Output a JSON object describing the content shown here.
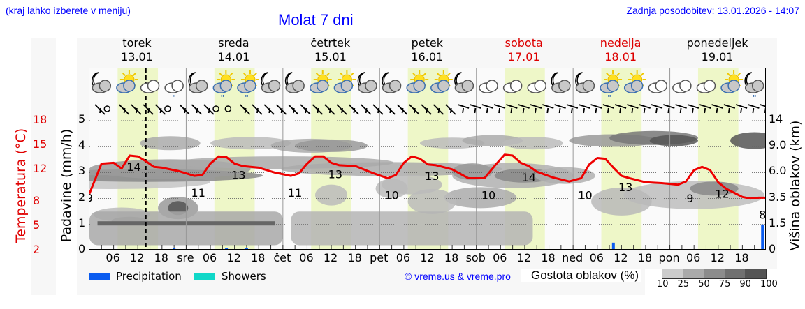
{
  "header": {
    "region_hint": "(kraj lahko izberete v meniju)",
    "title": "Molat 7 dni",
    "last_update": "Zadnja posodobitev: 13.01.2026 - 14:07"
  },
  "days": [
    {
      "name": "torek",
      "date": "13.01",
      "weekend": false
    },
    {
      "name": "sreda",
      "date": "14.01",
      "weekend": false
    },
    {
      "name": "četrtek",
      "date": "15.01",
      "weekend": false
    },
    {
      "name": "petek",
      "date": "16.01",
      "weekend": false
    },
    {
      "name": "sobota",
      "date": "17.01",
      "weekend": true
    },
    {
      "name": "nedelja",
      "date": "18.01",
      "weekend": true
    },
    {
      "name": "ponedeljek",
      "date": "19.01",
      "weekend": false
    }
  ],
  "axes": {
    "left_temp_title": "Temperatura (°C)",
    "left_temp_ticks": [
      "18",
      "15",
      "12",
      "8",
      "5",
      "2"
    ],
    "precip_title": "Padavine (mm/h)",
    "precip_ticks": [
      "5",
      "4",
      "3",
      "2",
      "1",
      "0"
    ],
    "right_title": "Višina oblakov (km)",
    "right_ticks": [
      "14",
      "9.0",
      "6.0",
      "3.5",
      "1.5",
      "0"
    ],
    "x_ticks": [
      "06",
      "12",
      "18",
      "sre",
      "06",
      "12",
      "18",
      "čet",
      "06",
      "12",
      "18",
      "pet",
      "06",
      "12",
      "18",
      "sob",
      "06",
      "12",
      "18",
      "ned",
      "06",
      "12",
      "18",
      "pon",
      "06",
      "12",
      "18"
    ]
  },
  "legend": {
    "precipitation_label": "Precipitation",
    "precipitation_color": "#0a5cf0",
    "showers_label": "Showers",
    "showers_color": "#10d8c8",
    "credit": "© vreme.us & vreme.pro",
    "cloud_density_title": "Gostota oblakov (%)",
    "cloud_density_ticks": [
      "10",
      "25",
      "50",
      "75",
      "90",
      "100"
    ],
    "cloud_density_colors": [
      "#cccccc",
      "#aaaaaa",
      "#8c8c8c",
      "#707070",
      "#555555"
    ]
  },
  "colors": {
    "temperature_line": "#ee0000",
    "daytime_band": "#eef7c8",
    "weekend_day": "#dd0000",
    "now_marker": "#000000"
  },
  "chart_data": {
    "type": "line",
    "title": "Molat 7 dni",
    "xlabel": "",
    "ylabel": "Temperatura (°C)",
    "ylim": [
      2,
      18
    ],
    "x_range_hours": [
      0,
      168
    ],
    "now_marker_hour": 14,
    "series": [
      {
        "name": "Temperatura (°C)",
        "x_hours": [
          0,
          3,
          6,
          8,
          10,
          12,
          14,
          16,
          18,
          22,
          26,
          28,
          30,
          32,
          34,
          36,
          38,
          42,
          46,
          50,
          52,
          54,
          56,
          58,
          60,
          62,
          66,
          70,
          74,
          76,
          78,
          80,
          82,
          84,
          86,
          90,
          94,
          98,
          101,
          103,
          105,
          107,
          109,
          111,
          115,
          119,
          122,
          124,
          126,
          128,
          130,
          132,
          134,
          138,
          142,
          146,
          148,
          150,
          152,
          154,
          156,
          158,
          160,
          162,
          164,
          166,
          168
        ],
        "values": [
          9,
          12.7,
          12.8,
          12.1,
          13.7,
          13.6,
          13.0,
          12.3,
          12.2,
          11.8,
          11.2,
          11.3,
          12.7,
          13.6,
          13.5,
          12.7,
          12.4,
          12.2,
          11.6,
          11.2,
          11.5,
          12.7,
          13.6,
          13.6,
          12.8,
          12.5,
          12.4,
          11.6,
          10.9,
          11.3,
          12.8,
          13.6,
          13.3,
          12.6,
          12.5,
          12.0,
          10.9,
          10.9,
          12.7,
          13.8,
          13.7,
          12.8,
          12.4,
          11.7,
          11.0,
          10.5,
          10.9,
          12.6,
          13.4,
          13.3,
          12.2,
          11.2,
          10.9,
          10.4,
          10.3,
          10.1,
          10.5,
          11.9,
          12.3,
          11.9,
          10.4,
          9.6,
          9.1,
          8.6,
          8.4,
          8.5,
          8.5
        ]
      }
    ],
    "temperature_labels": [
      {
        "hour": 0,
        "value": "9"
      },
      {
        "hour": 11,
        "value": "14"
      },
      {
        "hour": 27,
        "value": "11"
      },
      {
        "hour": 37,
        "value": "13"
      },
      {
        "hour": 51,
        "value": "11"
      },
      {
        "hour": 61,
        "value": "13"
      },
      {
        "hour": 75,
        "value": "10"
      },
      {
        "hour": 85,
        "value": "13"
      },
      {
        "hour": 99,
        "value": "10"
      },
      {
        "hour": 109,
        "value": "14"
      },
      {
        "hour": 123,
        "value": "10"
      },
      {
        "hour": 133,
        "value": "13"
      },
      {
        "hour": 149,
        "value": "9"
      },
      {
        "hour": 157,
        "value": "12"
      },
      {
        "hour": 167,
        "value": "8"
      }
    ],
    "precipitation_mm_h": [
      {
        "hour": 21,
        "value": 0.1
      },
      {
        "hour": 34,
        "value": 0.1
      },
      {
        "hour": 39,
        "value": 0.1
      },
      {
        "hour": 130,
        "value": 0.3
      },
      {
        "hour": 167,
        "value": 1.0
      }
    ],
    "precip_ylim": [
      0,
      5
    ],
    "cloud_height_ticks_km": [
      0,
      1.5,
      3.5,
      6.0,
      9.0,
      14
    ],
    "daytime_bands_hours": [
      [
        7,
        17
      ],
      [
        31,
        41
      ],
      [
        55,
        65
      ],
      [
        79,
        89
      ],
      [
        103,
        113
      ],
      [
        127,
        137
      ],
      [
        151,
        161
      ]
    ]
  },
  "icons": [
    "moon-cloud",
    "sun-cloud",
    "cloud",
    "cloud-drizzle",
    "moon-cloud",
    "sun-cloud-drizzle",
    "sun-cloud-drizzle",
    "moon-cloud",
    "moon-cloud",
    "sun-cloud",
    "sun-cloud",
    "moon-cloud",
    "moon-cloud",
    "sun-cloud",
    "sun-cloud",
    "moon-cloud",
    "cloud",
    "cloud",
    "cloud",
    "moon-cloud",
    "moon-cloud",
    "sun-cloud-drizzle",
    "sun-cloud",
    "cloud",
    "cloud",
    "cloud",
    "sun-cloud",
    "moon-cloud-drizzle"
  ]
}
